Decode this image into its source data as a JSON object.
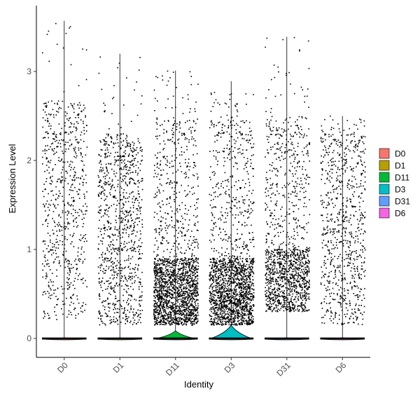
{
  "chart_data": {
    "type": "violin",
    "title": "",
    "xlabel": "Identity",
    "ylabel": "Expression Level",
    "ylim": [
      -0.2,
      3.65
    ],
    "yticks": [
      0,
      1,
      2,
      3
    ],
    "ytick_labels": [
      "0",
      "1",
      "2",
      "3"
    ],
    "categories": [
      "D0",
      "D1",
      "D11",
      "D3",
      "D31",
      "D6"
    ],
    "legend_position": "right",
    "series": [
      {
        "name": "D0",
        "color": "#F8766D",
        "max": 3.57,
        "zero_fraction": 0.68,
        "nonzero_points": 700,
        "distribution": "uniform-high",
        "violin_zero_halfwidth": 0.4
      },
      {
        "name": "D1",
        "color": "#B79F00",
        "max": 3.2,
        "zero_fraction": 0.55,
        "nonzero_points": 1000,
        "distribution": "uniform-mid",
        "violin_zero_halfwidth": 0.4
      },
      {
        "name": "D11",
        "color": "#00BA38",
        "max": 3.01,
        "zero_fraction": 0.5,
        "nonzero_points": 2000,
        "distribution": "low-dense",
        "violin_zero_halfwidth": 0.4
      },
      {
        "name": "D3",
        "color": "#00BFC4",
        "max": 2.89,
        "zero_fraction": 0.58,
        "nonzero_points": 1900,
        "distribution": "low-dense",
        "violin_zero_halfwidth": 0.4
      },
      {
        "name": "D31",
        "color": "#619CFF",
        "max": 3.39,
        "zero_fraction": 0.6,
        "nonzero_points": 1400,
        "distribution": "low-mid",
        "violin_zero_halfwidth": 0.4
      },
      {
        "name": "D6",
        "color": "#F564E3",
        "max": 2.5,
        "zero_fraction": 0.6,
        "nonzero_points": 800,
        "distribution": "uniform-mid",
        "violin_zero_halfwidth": 0.4
      }
    ],
    "jitter_width": 0.4
  }
}
